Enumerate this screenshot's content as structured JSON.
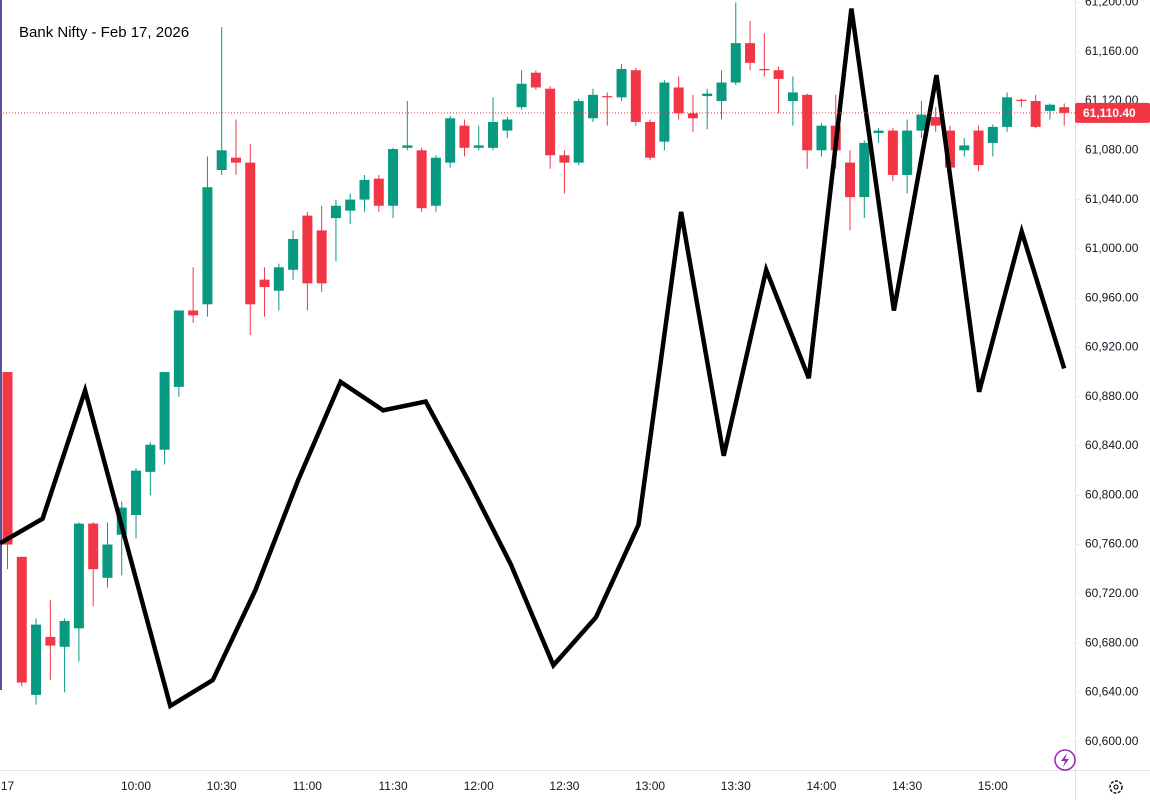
{
  "chart_data": {
    "type": "candlestick",
    "title": "Bank Nifty - Feb 17, 2026",
    "categories": [
      "17",
      null,
      null,
      null,
      null,
      null,
      null,
      null,
      null,
      "10:00",
      null,
      null,
      null,
      null,
      null,
      "10:30",
      null,
      null,
      null,
      null,
      null,
      "11:00",
      null,
      null,
      null,
      null,
      null,
      "11:30",
      null,
      null,
      null,
      null,
      null,
      "12:00",
      null,
      null,
      null,
      null,
      null,
      "12:30",
      null,
      null,
      null,
      null,
      null,
      "13:00",
      null,
      null,
      null,
      null,
      null,
      "13:30",
      null,
      null,
      null,
      null,
      null,
      "14:00",
      null,
      null,
      null,
      null,
      null,
      "14:30",
      null,
      null,
      null,
      null,
      null,
      "15:00",
      null,
      null,
      null,
      null,
      null
    ],
    "open": [
      60900,
      60750,
      60638,
      60685,
      60677,
      60692,
      60777,
      60733,
      60768,
      60784,
      60819,
      60837,
      60888,
      60950,
      60955,
      61064,
      61074,
      61070,
      60975,
      60966,
      60983,
      61027,
      61015,
      61025,
      61031,
      61040,
      61057,
      61035,
      61082,
      61080,
      61035,
      61070,
      61100,
      61082,
      61082,
      61096,
      61115,
      61143,
      61130,
      61076,
      61070,
      61106,
      61124,
      61123,
      61145,
      61103,
      61087,
      61131,
      61110,
      61124,
      61120,
      61135,
      61167,
      61146,
      61145,
      61120,
      61125,
      61080,
      61100,
      61070,
      61042,
      61094,
      61096,
      61060,
      61096,
      61107,
      61096,
      61080,
      61096,
      61086,
      61099,
      61121,
      61120,
      61112,
      61115
    ],
    "high": [
      60900,
      60750,
      60700,
      60715,
      60700,
      60778,
      60778,
      60778,
      60795,
      60822,
      60843,
      60900,
      60950,
      60985,
      61075,
      61180,
      61105,
      61085,
      60985,
      60988,
      61015,
      61030,
      61035,
      61040,
      61045,
      61060,
      61060,
      61082,
      61120,
      61082,
      61076,
      61108,
      61105,
      61100,
      61123,
      61107,
      61145,
      61145,
      61132,
      61080,
      61122,
      61130,
      61127,
      61150,
      61147,
      61105,
      61137,
      61140,
      61125,
      61130,
      61145,
      61200,
      61185,
      61175,
      61148,
      61140,
      61126,
      61102,
      61125,
      61080,
      61088,
      61098,
      61098,
      61105,
      61120,
      61115,
      61100,
      61090,
      61100,
      61101,
      61127,
      61122,
      61125,
      61118,
      61118
    ],
    "low": [
      60740,
      60645,
      60630,
      60650,
      60640,
      60665,
      60710,
      60725,
      60735,
      60765,
      60800,
      60825,
      60880,
      60940,
      60945,
      61060,
      61060,
      60930,
      60945,
      60950,
      60975,
      60950,
      60965,
      60990,
      61020,
      61030,
      61030,
      61025,
      61080,
      61030,
      61030,
      61066,
      61075,
      61080,
      61080,
      61090,
      61113,
      61129,
      61065,
      61045,
      61068,
      61103,
      61100,
      61120,
      61100,
      61072,
      61080,
      61105,
      61095,
      61097,
      61105,
      61133,
      61145,
      61140,
      61110,
      61100,
      61065,
      61075,
      61065,
      61015,
      61025,
      61086,
      61055,
      61045,
      61090,
      61095,
      61060,
      61075,
      61063,
      61075,
      61095,
      61115,
      61098,
      61105,
      61100
    ],
    "close": [
      60760,
      60648,
      60695,
      60678,
      60698,
      60777,
      60740,
      60760,
      60790,
      60820,
      60841,
      60900,
      60950,
      60946,
      61050,
      61080,
      61070,
      60955,
      60969,
      60985,
      61008,
      60972,
      60972,
      61035,
      61040,
      61056,
      61035,
      61081,
      61084,
      61033,
      61074,
      61106,
      61082,
      61084,
      61103,
      61105,
      61134,
      61131,
      61076,
      61070,
      61120,
      61125,
      61123,
      61146,
      61103,
      61074,
      61135,
      61110,
      61106,
      61126,
      61135,
      61167,
      61151,
      61145,
      61138,
      61127,
      61080,
      61100,
      61080,
      61042,
      61086,
      61096,
      61060,
      61096,
      61109,
      61100,
      61066,
      61084,
      61068,
      61099,
      61123,
      61120,
      61099,
      61117,
      61110.4
    ],
    "up_color": "#089981",
    "down_color": "#f23645",
    "line": {
      "color": "#000000",
      "values": [
        60761,
        60781,
        60885,
        60757,
        60629,
        60650,
        60723,
        60812,
        60892,
        60869,
        60876,
        60812,
        60744,
        60662,
        60701,
        60776,
        61030,
        60832,
        60983,
        60895,
        61195,
        60950,
        61141,
        60884,
        61014,
        60903
      ]
    },
    "last_price": {
      "value": 61110.4,
      "label": "61,110.40"
    },
    "ylim": [
      60577,
      61202
    ],
    "yticks": [
      {
        "value": 60600,
        "label": "60,600.00"
      },
      {
        "value": 60640,
        "label": "60,640.00"
      },
      {
        "value": 60680,
        "label": "60,680.00"
      },
      {
        "value": 60720,
        "label": "60,720.00"
      },
      {
        "value": 60760,
        "label": "60,760.00"
      },
      {
        "value": 60800,
        "label": "60,800.00"
      },
      {
        "value": 60840,
        "label": "60,840.00"
      },
      {
        "value": 60880,
        "label": "60,880.00"
      },
      {
        "value": 60920,
        "label": "60,920.00"
      },
      {
        "value": 60960,
        "label": "60,960.00"
      },
      {
        "value": 61000,
        "label": "61,000.00"
      },
      {
        "value": 61040,
        "label": "61,040.00"
      },
      {
        "value": 61080,
        "label": "61,080.00"
      },
      {
        "value": 61120,
        "label": "61,120.00"
      },
      {
        "value": 61160,
        "label": "61,160.00"
      },
      {
        "value": 61200,
        "label": "61,200.00"
      }
    ],
    "grid": false
  }
}
